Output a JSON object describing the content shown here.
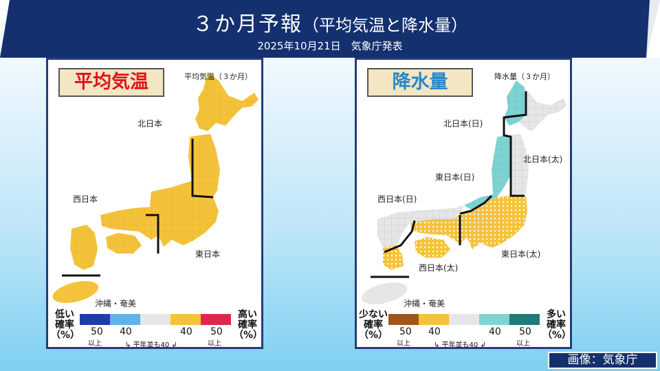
{
  "header": {
    "title": "３か月予報",
    "subtitle": "（平均気温と降水量）",
    "date": "2025年10月21日　気象庁発表"
  },
  "temperature_panel": {
    "badge": "平均気温",
    "map_caption": "平均気温（３か月）",
    "regions": [
      {
        "name": "北日本",
        "forecast": "above-normal-40"
      },
      {
        "name": "東日本",
        "forecast": "above-normal-40"
      },
      {
        "name": "西日本",
        "forecast": "above-normal-40"
      },
      {
        "name": "沖縄・奄美",
        "forecast": "above-normal-40"
      }
    ],
    "legend": {
      "low_label": "低い\n確率\n（%）",
      "high_label": "高い\n確率\n（%）",
      "ticks": [
        "50",
        "40",
        "40",
        "50"
      ],
      "or_more": "以上",
      "normal_note": "平年並も40",
      "colors": [
        "#1f3da8",
        "#5fb3e8",
        "#e6e6e6",
        "#f5c33b",
        "#e0264f"
      ]
    }
  },
  "precipitation_panel": {
    "badge": "降水量",
    "map_caption": "降水量（３か月）",
    "regions": [
      {
        "name": "北日本(日)",
        "forecast": "above-normal-40"
      },
      {
        "name": "北日本(太)",
        "forecast": "normal"
      },
      {
        "name": "東日本(日)",
        "forecast": "above-normal-40"
      },
      {
        "name": "東日本(太)",
        "forecast": "below-normal-40"
      },
      {
        "name": "西日本(日)",
        "forecast": "normal"
      },
      {
        "name": "西日本(太)",
        "forecast": "below-normal-40"
      },
      {
        "name": "沖縄・奄美",
        "forecast": "normal"
      }
    ],
    "legend": {
      "low_label": "少ない\n確率\n（%）",
      "high_label": "多い\n確率\n（%）",
      "ticks": [
        "50",
        "40",
        "40",
        "50"
      ],
      "or_more": "以上",
      "normal_note": "平年並も40",
      "colors": [
        "#a0561a",
        "#f5c33b",
        "#e6e6e6",
        "#7fd3d3",
        "#1f7b78"
      ]
    }
  },
  "credit": "画像：気象庁"
}
